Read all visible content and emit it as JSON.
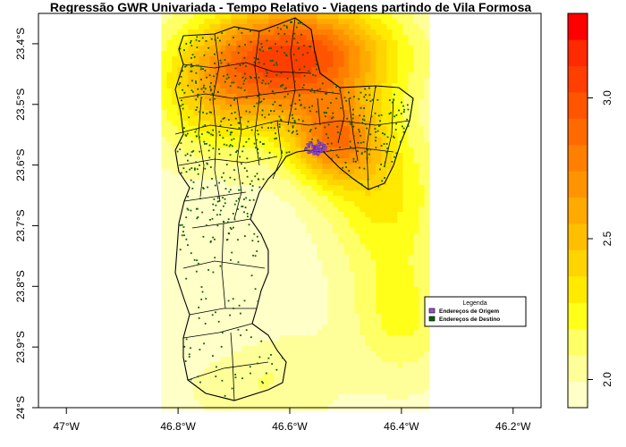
{
  "title": "Regressão GWR Univariada - Tempo Relativo - Viagens partindo de Vila Formosa",
  "axes": {
    "x_ticks": [
      "47°W",
      "46.8°W",
      "46.6°W",
      "46.4°W",
      "46.2°W"
    ],
    "y_ticks": [
      "23.4°S",
      "23.5°S",
      "23.6°S",
      "23.7°S",
      "23.8°S",
      "23.9°S",
      "24°S"
    ]
  },
  "legend": {
    "title": "Legenda",
    "items": [
      {
        "label": "Endereços de Origem",
        "color": "#9b4fd8"
      },
      {
        "label": "Endereços de Destino",
        "color": "#0b5e0b"
      }
    ]
  },
  "colorbar": {
    "ticks": [
      "2.0",
      "2.5",
      "3.0"
    ],
    "colors": [
      "#ffffc8",
      "#ffff99",
      "#ffff66",
      "#ffff1a",
      "#ffea00",
      "#ffd400",
      "#ffbf00",
      "#ffaa00",
      "#ff9400",
      "#ff7f00",
      "#ff6a00",
      "#ff5500",
      "#ff3f00",
      "#ff2a00",
      "#ff0000"
    ]
  },
  "chart_data": {
    "type": "heatmap",
    "title": "Regressão GWR Univariada - Tempo Relativo - Viagens partindo de Vila Formosa",
    "xlabel": "",
    "ylabel": "",
    "x_range": [
      -47.05,
      -46.15
    ],
    "y_range": [
      -24.0,
      -23.35
    ],
    "raster_extent": {
      "lon": [
        -46.83,
        -46.35
      ],
      "lat": [
        -24.0,
        -23.35
      ]
    },
    "value_range": [
      1.9,
      3.3
    ],
    "colorbar_ticks": [
      2.0,
      2.5,
      3.0
    ],
    "hotspots": [
      {
        "lon": -46.57,
        "lat": -23.43,
        "value": 3.25
      },
      {
        "lon": -46.55,
        "lat": -23.57,
        "value": 2.95
      }
    ],
    "origin_cluster": {
      "lon": -46.555,
      "lat": -23.57
    }
  },
  "colors": {
    "axis": "#000000",
    "polygon_stroke": "#000000",
    "origin": "#9b4fd8",
    "destination": "#0b5e0b"
  }
}
